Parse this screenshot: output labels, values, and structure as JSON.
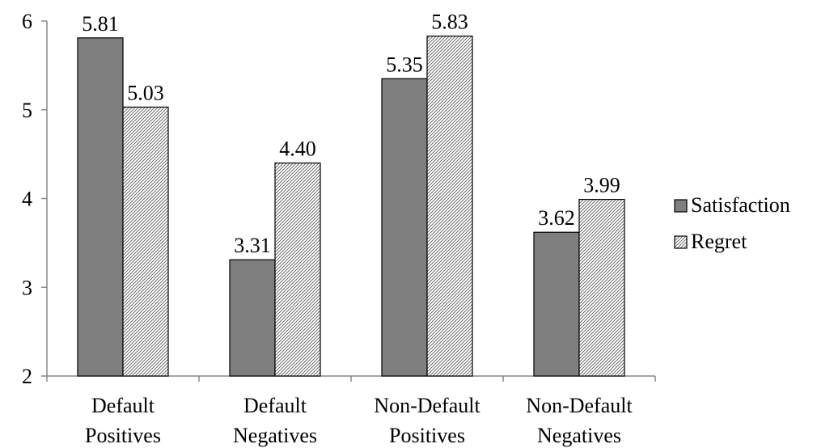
{
  "chart_data": {
    "type": "bar",
    "categories": [
      [
        "Default",
        "Positives"
      ],
      [
        "Default",
        "Negatives"
      ],
      [
        "Non-Default",
        "Positives"
      ],
      [
        "Non-Default",
        "Negatives"
      ]
    ],
    "series": [
      {
        "name": "Satisfaction",
        "values": [
          5.81,
          3.31,
          5.35,
          3.62
        ],
        "labels": [
          "5.81",
          "3.31",
          "5.35",
          "3.62"
        ],
        "color": "#7f7f7f",
        "pattern": "solid"
      },
      {
        "name": "Regret",
        "values": [
          5.03,
          4.4,
          5.83,
          3.99
        ],
        "labels": [
          "5.03",
          "4.40",
          "5.83",
          "3.99"
        ],
        "color": "#ffffff",
        "pattern": "hatch"
      }
    ],
    "ylim": [
      2,
      6
    ],
    "yticks": [
      "2",
      "3",
      "4",
      "5",
      "6"
    ],
    "title": "",
    "xlabel": "",
    "ylabel": "",
    "legend_position": "right",
    "grid": false
  }
}
